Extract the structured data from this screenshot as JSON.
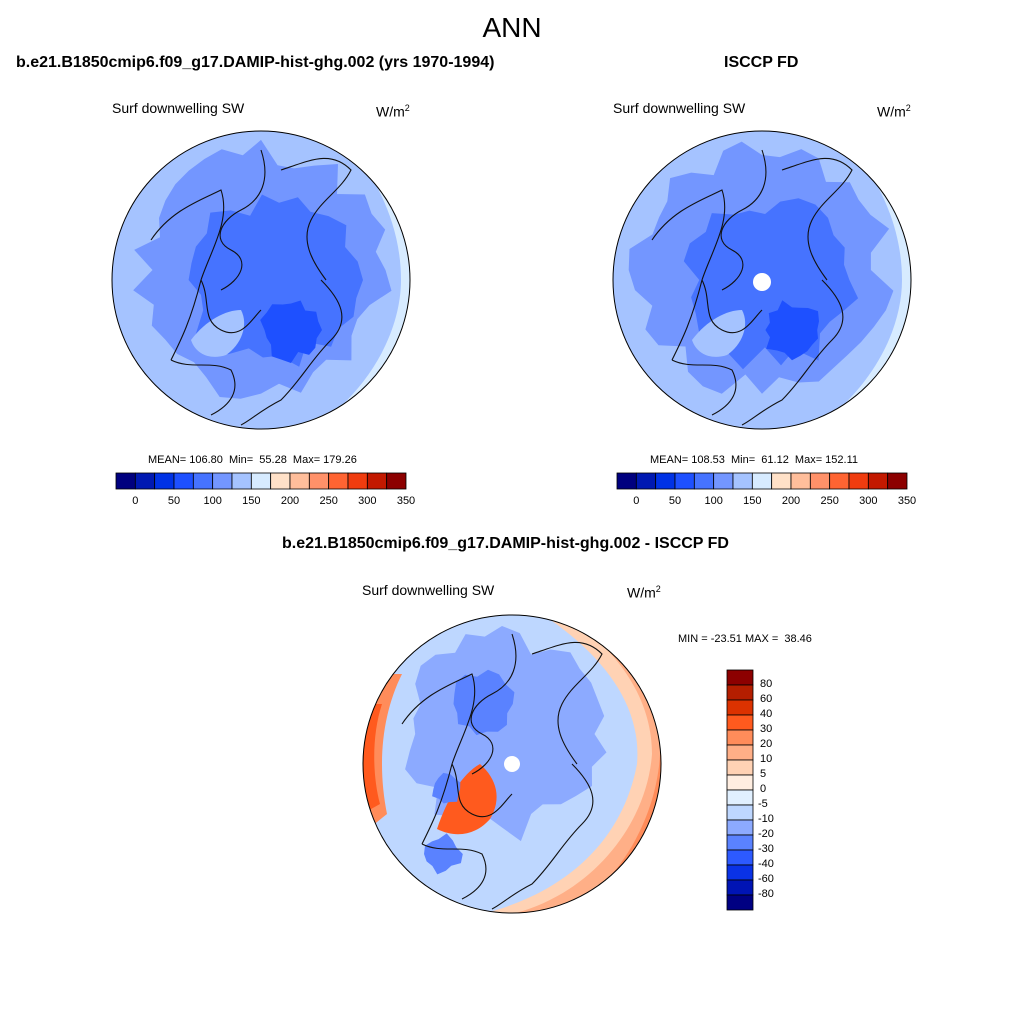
{
  "main_title": "ANN",
  "panels": [
    {
      "title": "b.e21.B1850cmip6.f09_g17.DAMIP-hist-ghg.002 (yrs 1970-1994)",
      "variable": "Surf downwelling SW",
      "units_base": "W/m",
      "units_exp": "2",
      "stats_text": "MEAN= 106.80  Min=  55.28  Max= 179.26",
      "mean": 106.8,
      "min": 55.28,
      "max": 179.26,
      "pole_hole": false
    },
    {
      "title": "ISCCP FD",
      "variable": "Surf downwelling SW",
      "units_base": "W/m",
      "units_exp": "2",
      "stats_text": "MEAN= 108.53  Min=  61.12  Max= 152.11",
      "mean": 108.53,
      "min": 61.12,
      "max": 152.11,
      "pole_hole": true
    }
  ],
  "abs_colorbar": {
    "tick_labels": [
      "0",
      "50",
      "100",
      "150",
      "200",
      "250",
      "300",
      "350"
    ],
    "colors": [
      "#00007f",
      "#0019b2",
      "#0032e5",
      "#1e50ff",
      "#4673ff",
      "#7396ff",
      "#a5c3ff",
      "#d7ebff",
      "#ffe1c8",
      "#ffbe9b",
      "#ff9169",
      "#ff6432",
      "#f03c0f",
      "#c31900",
      "#8c0000"
    ]
  },
  "diff_panel": {
    "title": "b.e21.B1850cmip6.f09_g17.DAMIP-hist-ghg.002 - ISCCP FD",
    "variable": "Surf downwelling SW",
    "units_base": "W/m",
    "units_exp": "2",
    "minmax_text": "MIN = -23.51 MAX =  38.46",
    "min": -23.51,
    "max": 38.46,
    "pole_hole": true
  },
  "diff_colorbar": {
    "labels": [
      "80",
      "60",
      "40",
      "30",
      "20",
      "10",
      "5",
      "0",
      "-5",
      "-10",
      "-20",
      "-30",
      "-40",
      "-60",
      "-80"
    ],
    "colors": [
      "#8c0000",
      "#b41e00",
      "#dc3200",
      "#ff5a1e",
      "#ff8c5a",
      "#ffaf87",
      "#ffd2b4",
      "#ffeee1",
      "#e1f0ff",
      "#bed7ff",
      "#8caaff",
      "#5a82ff",
      "#2d5aff",
      "#0a32e6",
      "#0014b4",
      "#000082"
    ]
  }
}
